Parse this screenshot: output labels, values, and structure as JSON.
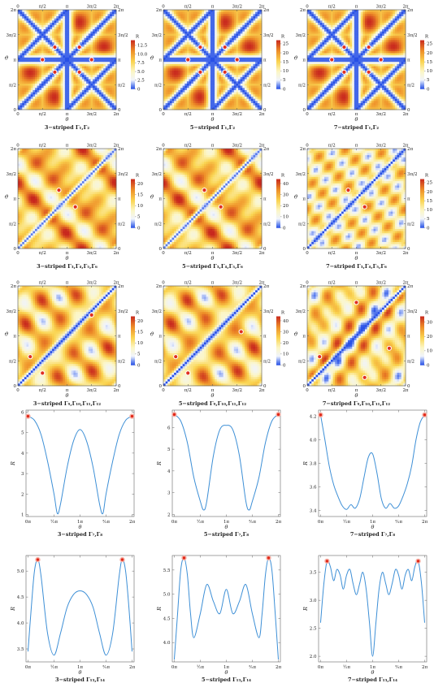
{
  "chart_data": [
    {
      "type": "heatmap",
      "caption": "3−striped Γ₁,Γ₂",
      "xlabel": "θ",
      "ylabel": "ϑ",
      "colorbar_label": "R",
      "colorbar_ticks": [
        "0",
        "2.5",
        "5.0",
        "7.5",
        "10.0",
        "12.5"
      ],
      "vmax": 14,
      "pattern": "A",
      "tick_labels": [
        "0",
        "π/2",
        "π",
        "3π/2",
        "2π"
      ],
      "markers": [
        [
          2.36,
          3.93
        ],
        [
          3.93,
          3.93
        ],
        [
          1.57,
          3.14
        ],
        [
          4.71,
          3.14
        ],
        [
          2.36,
          2.36
        ],
        [
          3.93,
          2.36
        ]
      ]
    },
    {
      "type": "heatmap",
      "caption": "5−striped Γ₁,Γ₂",
      "xlabel": "θ",
      "ylabel": "ϑ",
      "colorbar_label": "R",
      "colorbar_ticks": [
        "0",
        "5",
        "10",
        "15",
        "20",
        "25"
      ],
      "vmax": 27,
      "pattern": "A",
      "tick_labels": [
        "0",
        "π/2",
        "π",
        "3π/2",
        "2π"
      ],
      "markers": [
        [
          2.36,
          3.93
        ],
        [
          3.93,
          3.93
        ],
        [
          1.57,
          3.14
        ],
        [
          4.71,
          3.14
        ],
        [
          2.36,
          2.36
        ],
        [
          3.93,
          2.36
        ]
      ]
    },
    {
      "type": "heatmap",
      "caption": "7−striped Γ₁,Γ₂",
      "xlabel": "θ",
      "ylabel": "ϑ",
      "colorbar_label": "R",
      "colorbar_ticks": [
        "0",
        "5",
        "10",
        "15",
        "20",
        "25"
      ],
      "vmax": 27,
      "pattern": "A",
      "tick_labels": [
        "0",
        "π/2",
        "π",
        "3π/2",
        "2π"
      ],
      "markers": [
        [
          2.36,
          3.93
        ],
        [
          3.93,
          3.93
        ],
        [
          1.57,
          3.14
        ],
        [
          4.71,
          3.14
        ],
        [
          2.36,
          2.36
        ],
        [
          3.93,
          2.36
        ]
      ]
    },
    {
      "type": "heatmap",
      "caption": "3−striped Γ₃,Γ₄,Γ₅,Γ₆",
      "xlabel": "θ",
      "ylabel": "ϑ",
      "colorbar_label": "R",
      "colorbar_ticks": [
        "0",
        "5",
        "10",
        "15",
        "20"
      ],
      "vmax": 22,
      "pattern": "B",
      "tick_labels": [
        "0",
        "π/2",
        "π",
        "3π/2",
        "2π"
      ],
      "markers": [
        [
          2.62,
          3.67
        ],
        [
          3.67,
          2.62
        ]
      ]
    },
    {
      "type": "heatmap",
      "caption": "5−striped Γ₃,Γ₄,Γ₅,Γ₆",
      "xlabel": "θ",
      "ylabel": "ϑ",
      "colorbar_label": "R",
      "colorbar_ticks": [
        "0",
        "10",
        "20",
        "30",
        "40"
      ],
      "vmax": 44,
      "pattern": "B",
      "tick_labels": [
        "0",
        "π/2",
        "π",
        "3π/2",
        "2π"
      ],
      "markers": [
        [
          2.62,
          3.67
        ],
        [
          3.67,
          2.62
        ]
      ]
    },
    {
      "type": "heatmap",
      "caption": "7−striped Γ₃,Γ₄,Γ₅,Γ₆",
      "xlabel": "θ",
      "ylabel": "ϑ",
      "colorbar_label": "R",
      "colorbar_ticks": [
        "0",
        "5",
        "10",
        "15",
        "20",
        "25"
      ],
      "vmax": 27,
      "pattern": "B2",
      "tick_labels": [
        "0",
        "π/2",
        "π",
        "3π/2",
        "2π"
      ],
      "markers": [
        [
          2.62,
          3.67
        ],
        [
          3.67,
          2.62
        ]
      ]
    },
    {
      "type": "heatmap",
      "caption": "3−striped Γ₉,Γ₁₀,Γ₁₁,Γ₁₂",
      "xlabel": "θ",
      "ylabel": "ϑ",
      "colorbar_label": "R",
      "colorbar_ticks": [
        "0",
        "5",
        "10",
        "15",
        "20"
      ],
      "vmax": 22,
      "pattern": "C",
      "tick_labels": [
        "0",
        "π/2",
        "π",
        "3π/2",
        "2π"
      ],
      "markers": [
        [
          4.71,
          4.45
        ],
        [
          0.79,
          1.83
        ],
        [
          1.57,
          0.8
        ]
      ]
    },
    {
      "type": "heatmap",
      "caption": "5−striped Γ₉,Γ₁₀,Γ₁₁,Γ₁₂",
      "xlabel": "θ",
      "ylabel": "ϑ",
      "colorbar_label": "R",
      "colorbar_ticks": [
        "0",
        "10",
        "20",
        "30",
        "40"
      ],
      "vmax": 44,
      "pattern": "C",
      "tick_labels": [
        "0",
        "π/2",
        "π",
        "3π/2",
        "2π"
      ],
      "markers": [
        [
          4.97,
          3.4
        ],
        [
          0.79,
          1.83
        ],
        [
          1.57,
          0.8
        ]
      ]
    },
    {
      "type": "heatmap",
      "caption": "7−striped Γ₉,Γ₁₀,Γ₁₁,Γ₁₂",
      "xlabel": "θ",
      "ylabel": "ϑ",
      "colorbar_label": "R",
      "colorbar_ticks": [
        "0",
        "10",
        "20",
        "30"
      ],
      "vmax": 34,
      "pattern": "C2",
      "tick_labels": [
        "0",
        "π/2",
        "π",
        "3π/2",
        "2π"
      ],
      "markers": [
        [
          3.14,
          5.24
        ],
        [
          0.79,
          1.83
        ],
        [
          5.24,
          2.36
        ],
        [
          3.67,
          0.52
        ]
      ]
    },
    {
      "type": "line",
      "caption": "3−striped Γ₇,Γ₈",
      "xlabel": "θ",
      "ylabel": "R",
      "ylim": [
        0.9,
        6.1
      ],
      "yticks": [
        1,
        2,
        3,
        4,
        5,
        6
      ],
      "xticks": [
        "0π",
        "½π",
        "1π",
        "³⁄₂π",
        "2π"
      ],
      "series": [
        {
          "x": [
            0,
            0.39,
            0.79,
            1.18,
            1.57,
            1.77,
            1.96,
            2.36,
            2.75,
            3.14,
            3.53,
            3.93,
            4.32,
            4.52,
            4.71,
            5.11,
            5.5,
            5.89,
            6.28
          ],
          "y": [
            5.8,
            5.6,
            4.9,
            3.6,
            2.0,
            1.05,
            1.5,
            3.3,
            4.6,
            5.15,
            4.6,
            3.3,
            1.5,
            1.05,
            2.0,
            3.6,
            4.9,
            5.6,
            5.8
          ]
        }
      ],
      "markers": [
        [
          0,
          5.8
        ],
        [
          6.28,
          5.8
        ]
      ]
    },
    {
      "type": "line",
      "caption": "5−striped Γ₇,Γ₈",
      "xlabel": "θ",
      "ylabel": "R",
      "ylim": [
        1.9,
        6.8
      ],
      "yticks": [
        2,
        3,
        4,
        5,
        6
      ],
      "xticks": [
        "0π",
        "½π",
        "1π",
        "³⁄₂π",
        "2π"
      ],
      "series": [
        {
          "x": [
            0,
            0.39,
            0.79,
            1.18,
            1.57,
            1.77,
            1.96,
            2.36,
            2.75,
            3.14,
            3.53,
            3.93,
            4.32,
            4.52,
            4.71,
            5.11,
            5.5,
            5.89,
            6.28
          ],
          "y": [
            6.6,
            6.3,
            5.3,
            3.7,
            2.6,
            2.2,
            2.6,
            4.7,
            5.9,
            6.1,
            5.9,
            4.7,
            2.6,
            2.2,
            2.6,
            3.7,
            5.3,
            6.3,
            6.6
          ]
        }
      ],
      "markers": [
        [
          0,
          6.6
        ],
        [
          6.28,
          6.6
        ]
      ]
    },
    {
      "type": "line",
      "caption": "7−striped Γ₇,Γ₈",
      "xlabel": "θ",
      "ylabel": "R",
      "ylim": [
        3.35,
        4.25
      ],
      "yticks": [
        3.4,
        3.6,
        3.8,
        4.0,
        4.2
      ],
      "xticks": [
        "0π",
        "½π",
        "1π",
        "³⁄₂π",
        "2π"
      ],
      "series": [
        {
          "x": [
            0,
            0.26,
            0.52,
            0.79,
            1.05,
            1.31,
            1.57,
            1.83,
            2.09,
            2.36,
            2.62,
            2.88,
            3.14,
            3.4,
            3.67,
            3.93,
            4.19,
            4.45,
            4.71,
            4.97,
            5.24,
            5.5,
            5.76,
            6.02,
            6.28
          ],
          "y": [
            4.21,
            4.0,
            3.78,
            3.62,
            3.52,
            3.44,
            3.41,
            3.45,
            3.42,
            3.5,
            3.68,
            3.85,
            3.88,
            3.72,
            3.5,
            3.42,
            3.46,
            3.42,
            3.44,
            3.52,
            3.63,
            3.78,
            4.0,
            4.15,
            4.21
          ]
        }
      ],
      "markers": [
        [
          0,
          4.21
        ],
        [
          6.28,
          4.21
        ]
      ]
    },
    {
      "type": "line",
      "caption": "3−striped Γ₁₃,Γ₁₄",
      "xlabel": "θ",
      "ylabel": "R",
      "ylim": [
        3.25,
        5.3
      ],
      "yticks": [
        3.5,
        4.0,
        4.5,
        5.0
      ],
      "xticks": [
        "0π",
        "½π",
        "1π",
        "³⁄₂π",
        "2π"
      ],
      "series": [
        {
          "x": [
            0,
            0.2,
            0.39,
            0.59,
            0.79,
            1.18,
            1.57,
            1.96,
            2.36,
            2.75,
            3.14,
            3.53,
            3.93,
            4.32,
            4.71,
            5.11,
            5.5,
            5.69,
            5.89,
            6.09,
            6.28
          ],
          "y": [
            3.45,
            4.3,
            5.0,
            5.22,
            4.9,
            3.8,
            3.38,
            3.8,
            4.3,
            4.55,
            4.62,
            4.55,
            4.3,
            3.8,
            3.38,
            3.8,
            4.9,
            5.22,
            5.0,
            4.3,
            3.45
          ]
        }
      ],
      "markers": [
        [
          0.59,
          5.22
        ],
        [
          5.69,
          5.22
        ]
      ]
    },
    {
      "type": "line",
      "caption": "5−striped Γ₁₃,Γ₁₄",
      "xlabel": "θ",
      "ylabel": "R",
      "ylim": [
        3.6,
        5.8
      ],
      "yticks": [
        4.0,
        4.5,
        5.0,
        5.5
      ],
      "xticks": [
        "0π",
        "½π",
        "1π",
        "³⁄₂π",
        "2π"
      ],
      "series": [
        {
          "x": [
            0,
            0.2,
            0.39,
            0.59,
            0.79,
            0.98,
            1.18,
            1.57,
            1.96,
            2.36,
            2.75,
            3.14,
            3.53,
            3.93,
            4.32,
            4.71,
            5.11,
            5.3,
            5.5,
            5.69,
            5.89,
            6.09,
            6.28
          ],
          "y": [
            3.65,
            4.6,
            5.5,
            5.75,
            5.4,
            4.6,
            4.1,
            4.6,
            5.2,
            4.85,
            4.6,
            5.1,
            4.6,
            4.85,
            5.2,
            4.6,
            4.1,
            4.6,
            5.4,
            5.75,
            5.5,
            4.6,
            3.65
          ]
        }
      ],
      "markers": [
        [
          0.59,
          5.75
        ],
        [
          5.69,
          5.75
        ]
      ]
    },
    {
      "type": "line",
      "caption": "7−striped Γ₁₃,Γ₁₄",
      "xlabel": "θ",
      "ylabel": "R",
      "ylim": [
        1.9,
        3.8
      ],
      "yticks": [
        2.0,
        2.5,
        3.0,
        3.5
      ],
      "xticks": [
        "0π",
        "½π",
        "1π",
        "³⁄₂π",
        "2π"
      ],
      "series": [
        {
          "x": [
            0,
            0.2,
            0.39,
            0.59,
            0.79,
            0.98,
            1.18,
            1.37,
            1.57,
            1.77,
            1.96,
            2.16,
            2.36,
            2.55,
            2.75,
            2.95,
            3.14,
            3.34,
            3.53,
            3.73,
            3.93,
            4.12,
            4.32,
            4.52,
            4.71,
            4.91,
            5.11,
            5.3,
            5.5,
            5.69,
            5.89,
            6.09,
            6.28
          ],
          "y": [
            2.6,
            3.3,
            3.7,
            3.6,
            3.35,
            3.55,
            3.45,
            3.2,
            3.45,
            3.55,
            3.3,
            3.1,
            3.3,
            3.5,
            3.2,
            2.6,
            2.0,
            2.6,
            3.2,
            3.5,
            3.3,
            3.1,
            3.3,
            3.55,
            3.45,
            3.2,
            3.45,
            3.55,
            3.35,
            3.6,
            3.7,
            3.3,
            2.6
          ]
        }
      ],
      "markers": [
        [
          0.39,
          3.7
        ],
        [
          5.89,
          3.7
        ]
      ]
    }
  ]
}
